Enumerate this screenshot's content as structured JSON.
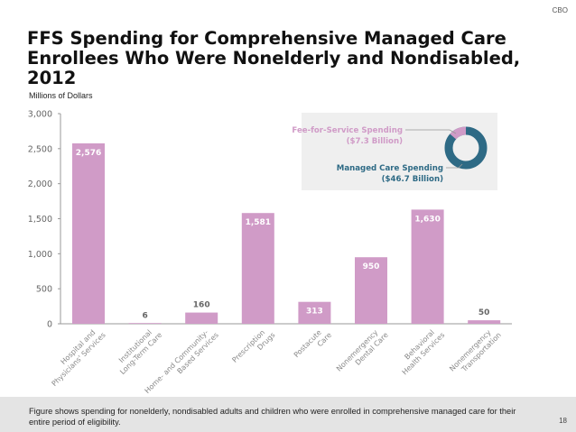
{
  "header": {
    "brand": "CBO",
    "title": "FFS Spending for Comprehensive Managed Care Enrollees Who Were Nonelderly and Nondisabled, 2012",
    "unit_label": "Millions of Dollars"
  },
  "footer": {
    "note": "Figure shows spending for nonelderly, nondisabled adults and children who were enrolled in comprehensive managed care for their entire period of eligibility.",
    "page_number": "18"
  },
  "colors": {
    "bar": "#d09bc7",
    "ffs": "#d09bc7",
    "managed": "#2e6a85",
    "legend_bg": "#efefef",
    "axis": "#999999"
  },
  "chart_data": {
    "type": "bar",
    "title": "FFS Spending for Comprehensive Managed Care Enrollees Who Were Nonelderly and Nondisabled, 2012",
    "ylabel": "Millions of Dollars",
    "xlabel": "",
    "ylim": [
      0,
      3000
    ],
    "yticks": [
      0,
      500,
      1000,
      1500,
      2000,
      2500,
      3000
    ],
    "ytick_labels": [
      "0",
      "500",
      "1,000",
      "1,500",
      "2,000",
      "2,500",
      "3,000"
    ],
    "grid": false,
    "categories": [
      [
        "Hospital and",
        "Physicians' Services"
      ],
      [
        "Institutional",
        "Long-Term Care"
      ],
      [
        "Home- and Community-",
        "Based Services"
      ],
      [
        "Prescription",
        "Drugs"
      ],
      [
        "Postacute",
        "Care"
      ],
      [
        "Nonemergency",
        "Dental Care"
      ],
      [
        "Behavioral",
        "Health Services"
      ],
      [
        "Nonemergency",
        "Transportation"
      ]
    ],
    "values": [
      2576,
      6,
      160,
      1581,
      313,
      950,
      1630,
      50
    ],
    "data_labels": [
      "2,576",
      "6",
      "160",
      "1,581",
      "313",
      "950",
      "1,630",
      "50"
    ],
    "inset": {
      "type": "pie",
      "donut": true,
      "legend_placement": "top-right",
      "slices": [
        {
          "name": "Fee-for-Service Spending",
          "label": "($7.3 Billion)",
          "value": 7.3
        },
        {
          "name": "Managed Care Spending",
          "label": "($46.7 Billion)",
          "value": 46.7
        }
      ]
    }
  }
}
